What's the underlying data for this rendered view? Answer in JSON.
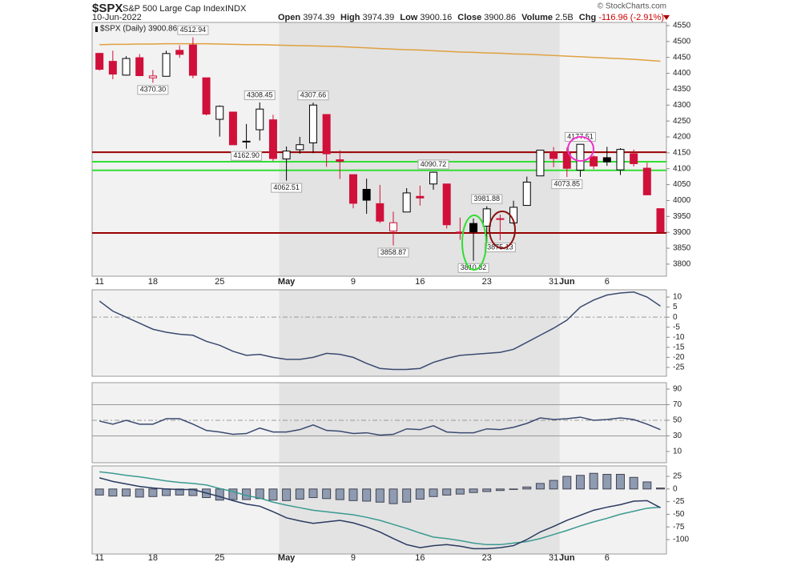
{
  "header": {
    "symbol": "$SPX",
    "name": "S&P 500 Large Cap Index",
    "exchange": "INDX",
    "date": "10-Jun-2022",
    "copyright": "© StockCharts.com",
    "stats": [
      {
        "label": "Open",
        "value": "3974.39"
      },
      {
        "label": "High",
        "value": "3974.39"
      },
      {
        "label": "Low",
        "value": "3900.16"
      },
      {
        "label": "Close",
        "value": "3900.86"
      },
      {
        "label": "Volume",
        "value": "2.5B"
      },
      {
        "label": "Chg",
        "value": "-116.96 (-2.91%)"
      }
    ]
  },
  "chart_data": [
    {
      "type": "candlestick",
      "legend": "$SPX (Daily) 3900.86",
      "categories": [
        "11",
        null,
        null,
        null,
        "18",
        null,
        null,
        null,
        null,
        "25",
        null,
        null,
        null,
        null,
        "May",
        null,
        null,
        null,
        null,
        "9",
        null,
        null,
        null,
        null,
        "16",
        null,
        null,
        null,
        null,
        "23",
        null,
        null,
        null,
        null,
        "31",
        "Jun",
        null,
        null,
        "6",
        null,
        null,
        null,
        null
      ],
      "open": [
        4462.64,
        4437.59,
        4394.3,
        4449.12,
        4385.63,
        4390.63,
        4472.26,
        4489.17,
        4385.83,
        4255.34,
        4278.14,
        4186.52,
        4222.58,
        4253.75,
        4130.61,
        4159.78,
        4181.18,
        4270.43,
        4128.17,
        4081.27,
        4035.18,
        3990.08,
        3903.95,
        3963.9,
        4013.02,
        4052.0,
        4051.98,
        3899.0,
        3927.76,
        3919.42,
        3942.94,
        3929.59,
        3984.6,
        4077.43,
        4151.09,
        4149.78,
        4095.41,
        4137.57,
        4134.72,
        4096.47,
        4147.12,
        4101.65,
        3974.39
      ],
      "high": [
        4464.35,
        4471.0,
        4453.92,
        4460.46,
        4410.31,
        4471.03,
        4488.29,
        4512.94,
        4385.83,
        4299.02,
        4278.14,
        4240.71,
        4308.45,
        4269.68,
        4169.81,
        4200.1,
        4307.66,
        4270.43,
        4157.69,
        4081.27,
        4068.82,
        4049.09,
        3964.8,
        4038.88,
        4046.46,
        4090.72,
        4051.98,
        3945.96,
        3943.42,
        3981.88,
        3955.68,
        3999.33,
        4075.14,
        4158.49,
        4168.34,
        4166.54,
        4177.51,
        4142.67,
        4168.78,
        4164.86,
        4160.14,
        4119.1,
        3974.39
      ],
      "low": [
        4408.38,
        4381.34,
        4392.7,
        4390.77,
        4370.3,
        4390.63,
        4448.76,
        4384.47,
        4267.62,
        4200.82,
        4175.04,
        4162.9,
        4188.63,
        4124.28,
        4062.51,
        4147.08,
        4148.91,
        4106.01,
        4067.91,
        3975.48,
        3958.17,
        3928.82,
        3858.87,
        3963.9,
        3983.99,
        4033.93,
        3911.91,
        3876.58,
        3810.32,
        3868.96,
        3875.13,
        3925.03,
        3984.6,
        4077.43,
        4104.88,
        4073.85,
        4074.37,
        4098.67,
        4109.18,
        4080.19,
        4107.2,
        4017.17,
        3900.16
      ],
      "close": [
        4412.53,
        4397.45,
        4446.59,
        4392.59,
        4391.69,
        4462.21,
        4459.45,
        4393.66,
        4271.78,
        4296.12,
        4175.2,
        4183.96,
        4287.5,
        4131.93,
        4155.38,
        4175.48,
        4300.17,
        4146.87,
        4123.34,
        3991.24,
        4001.05,
        3935.18,
        3930.08,
        4023.89,
        4008.01,
        4088.85,
        3923.68,
        3900.79,
        3901.36,
        3973.75,
        3941.48,
        3978.73,
        4057.84,
        4158.24,
        4132.15,
        4101.23,
        4176.82,
        4108.54,
        4121.43,
        4160.68,
        4115.77,
        4017.82,
        3900.86
      ],
      "high_labels": [
        null,
        null,
        null,
        null,
        null,
        null,
        null,
        "4512.94",
        null,
        null,
        null,
        null,
        "4308.45",
        null,
        null,
        null,
        "4307.66",
        null,
        null,
        null,
        null,
        null,
        null,
        null,
        null,
        "4090.72",
        null,
        null,
        null,
        "3981.88",
        null,
        null,
        null,
        null,
        null,
        null,
        "4177.51",
        null,
        null,
        null,
        null,
        null,
        null
      ],
      "low_labels": [
        null,
        null,
        null,
        null,
        "4370.30",
        null,
        null,
        null,
        null,
        null,
        null,
        "4162.90",
        null,
        null,
        "4062.51",
        null,
        null,
        null,
        null,
        null,
        null,
        null,
        "3858.87",
        null,
        null,
        null,
        null,
        null,
        "3810.32",
        null,
        "3875.13",
        null,
        null,
        null,
        null,
        "4073.85",
        null,
        null,
        null,
        null,
        null,
        null,
        null
      ],
      "up_color": "#000000",
      "down_color": "#d0103a",
      "ma": {
        "color": "#e0a040",
        "values": [
          4490,
          4491,
          4491,
          4492,
          4492,
          4493,
          4493,
          4493,
          4493,
          4492,
          4491,
          4490,
          4490,
          4489,
          4488,
          4487,
          4486,
          4485,
          4484,
          4482,
          4480,
          4478,
          4476,
          4474,
          4473,
          4471,
          4469,
          4467,
          4466,
          4464,
          4463,
          4461,
          4460,
          4458,
          4456,
          4454,
          4452,
          4450,
          4448,
          4446,
          4444,
          4441,
          4438
        ]
      },
      "hlines": [
        {
          "value": 4152,
          "color": "#990000"
        },
        {
          "value": 4122,
          "color": "#33dd33"
        },
        {
          "value": 4095,
          "color": "#33dd33"
        },
        {
          "value": 3898,
          "color": "#990000"
        }
      ],
      "ylim": [
        3762,
        4560
      ],
      "yticks": [
        3800,
        3850,
        3900,
        3950,
        4000,
        4050,
        4100,
        4150,
        4200,
        4250,
        4300,
        4350,
        4400,
        4450,
        4500,
        4550
      ]
    },
    {
      "type": "line",
      "color": "#3a4a70",
      "values": [
        8,
        3,
        0,
        -3,
        -6,
        -7.5,
        -8.5,
        -9,
        -12,
        -14,
        -17,
        -19,
        -18.5,
        -20,
        -21,
        -21,
        -20,
        -18,
        -18.5,
        -20,
        -23,
        -25.5,
        -26,
        -26,
        -25.5,
        -22.5,
        -20.5,
        -19,
        -18.5,
        -18,
        -17.5,
        -16,
        -12.5,
        -9,
        -5.5,
        -1.5,
        5,
        8.5,
        11,
        12,
        12.5,
        10,
        5.5
      ],
      "reference_lines": [
        {
          "value": 0,
          "dashed": true
        }
      ],
      "ylim": [
        -29.4,
        13.6
      ],
      "yticks": [
        10,
        5,
        0,
        -5,
        -10,
        -15,
        -20,
        -25
      ]
    },
    {
      "type": "line",
      "color": "#3a4a70",
      "values": [
        49,
        45,
        50,
        45,
        45,
        52,
        52,
        45,
        37,
        35,
        32,
        33,
        40,
        35,
        35,
        38,
        44,
        37,
        36,
        33,
        34,
        31,
        32,
        39,
        38,
        43,
        35,
        34,
        34,
        39,
        38,
        41,
        46,
        53,
        51,
        52,
        54,
        50,
        51,
        53,
        51,
        45,
        38
      ],
      "reference_lines": [
        {
          "value": 70,
          "dashed": false
        },
        {
          "value": 50,
          "dashed": true
        },
        {
          "value": 30,
          "dashed": false
        }
      ],
      "ylim": [
        -4.4,
        98.2
      ],
      "yticks": [
        90,
        70,
        50,
        30,
        10
      ]
    },
    {
      "type": "macd",
      "categories": [
        "11",
        null,
        null,
        null,
        "18",
        null,
        null,
        null,
        null,
        "25",
        null,
        null,
        null,
        null,
        "May",
        null,
        null,
        null,
        null,
        "9",
        null,
        null,
        null,
        null,
        "16",
        null,
        null,
        null,
        null,
        "23",
        null,
        null,
        null,
        null,
        "31",
        "Jun",
        null,
        null,
        "6",
        null,
        null,
        null,
        null
      ],
      "histogram": {
        "color": "#8e9bb0",
        "values": [
          -12,
          -14,
          -14,
          -16,
          -15,
          -13,
          -12,
          -13,
          -17,
          -22,
          -21,
          -21,
          -19,
          -22,
          -23,
          -20,
          -17,
          -19,
          -21,
          -23,
          -24,
          -26,
          -29,
          -26,
          -20,
          -15,
          -12,
          -10,
          -7,
          -5,
          -3,
          -1,
          4,
          11,
          17,
          25,
          27,
          31,
          29,
          29,
          23,
          14,
          2
        ]
      },
      "macd": {
        "color": "#2a3a60",
        "values": [
          22,
          15,
          10,
          5,
          2,
          0,
          -1,
          -1,
          -8,
          -15,
          -23,
          -30,
          -34,
          -45,
          -57,
          -63,
          -68,
          -65,
          -62,
          -67,
          -75,
          -85,
          -98,
          -110,
          -116,
          -112,
          -110,
          -113,
          -118,
          -118,
          -116,
          -112,
          -100,
          -85,
          -74,
          -62,
          -52,
          -42,
          -36,
          -31,
          -24,
          -23,
          -37
        ]
      },
      "signal": {
        "color": "#3a9a90",
        "values": [
          34,
          31,
          27,
          24,
          20,
          16,
          13,
          11,
          8,
          1,
          -5,
          -13,
          -18,
          -26,
          -32,
          -37,
          -42,
          -45,
          -48,
          -51,
          -56,
          -62,
          -70,
          -78,
          -87,
          -95,
          -98,
          -102,
          -107,
          -110,
          -110,
          -107,
          -104,
          -98,
          -90,
          -82,
          -73,
          -65,
          -58,
          -50,
          -44,
          -38,
          -36
        ]
      },
      "ylim": [
        -128.5,
        45.6
      ],
      "yticks": [
        25,
        0,
        -25,
        -50,
        -75,
        -100
      ]
    }
  ]
}
